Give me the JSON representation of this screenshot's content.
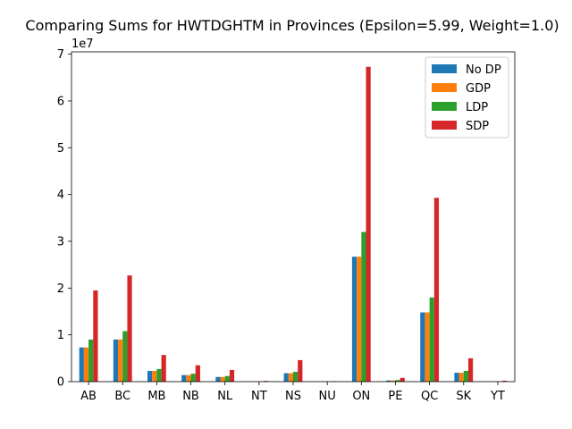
{
  "chart_data": {
    "type": "bar",
    "title": "Comparing Sums for HWTDGHTM in Provinces (Epsilon=5.99, Weight=1.0)",
    "xlabel": "",
    "ylabel": "",
    "y_scale_label": "1e7",
    "ylim": [
      0,
      70500000
    ],
    "yticks": [
      0,
      1,
      2,
      3,
      4,
      5,
      6,
      7
    ],
    "grid": false,
    "legend_position": "top-right",
    "categories": [
      "AB",
      "BC",
      "MB",
      "NB",
      "NL",
      "NT",
      "NS",
      "NU",
      "ON",
      "PE",
      "QC",
      "SK",
      "YT"
    ],
    "series": [
      {
        "name": "No DP",
        "color": "#1f77b4",
        "values": [
          7300000,
          9000000,
          2300000,
          1400000,
          1000000,
          50000,
          1800000,
          20000,
          26700000,
          250000,
          14800000,
          1900000,
          40000
        ]
      },
      {
        "name": "GDP",
        "color": "#ff7f0e",
        "values": [
          7300000,
          9000000,
          2300000,
          1400000,
          1000000,
          50000,
          1800000,
          20000,
          26700000,
          250000,
          14800000,
          1900000,
          40000
        ]
      },
      {
        "name": "LDP",
        "color": "#2ca02c",
        "values": [
          9000000,
          10800000,
          2700000,
          1700000,
          1200000,
          60000,
          2100000,
          30000,
          32000000,
          350000,
          18000000,
          2300000,
          50000
        ]
      },
      {
        "name": "SDP",
        "color": "#d62728",
        "values": [
          19500000,
          22700000,
          5700000,
          3500000,
          2500000,
          150000,
          4600000,
          100000,
          67300000,
          800000,
          39300000,
          5000000,
          200000
        ]
      }
    ]
  }
}
